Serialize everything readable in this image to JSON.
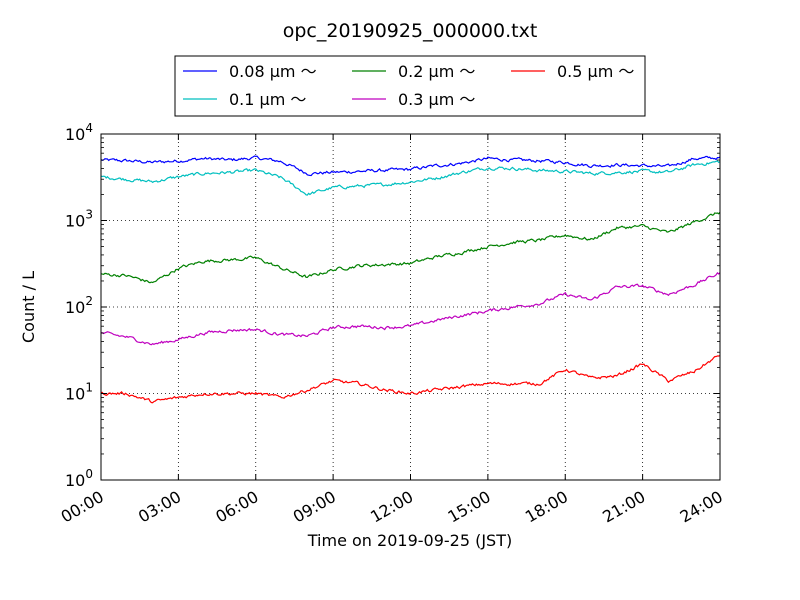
{
  "chart_data": {
    "type": "line",
    "title": "opc_20190925_000000.txt",
    "xlabel": "Time on 2019-09-25 (JST)",
    "ylabel": "Count / L",
    "yscale": "log",
    "ylim": [
      1,
      10000
    ],
    "xlim": [
      "00:00",
      "24:00"
    ],
    "grid": true,
    "legend_position": "top-center",
    "x_ticks": [
      "00:00",
      "03:00",
      "06:00",
      "09:00",
      "12:00",
      "15:00",
      "18:00",
      "21:00",
      "24:00"
    ],
    "y_ticks": [
      {
        "base": "10",
        "exp": "0",
        "value": 1
      },
      {
        "base": "10",
        "exp": "1",
        "value": 10
      },
      {
        "base": "10",
        "exp": "2",
        "value": 100
      },
      {
        "base": "10",
        "exp": "3",
        "value": 1000
      },
      {
        "base": "10",
        "exp": "4",
        "value": 10000
      }
    ],
    "x_hours": [
      0,
      1,
      2,
      3,
      4,
      5,
      6,
      7,
      8,
      9,
      10,
      11,
      12,
      13,
      14,
      15,
      16,
      17,
      18,
      19,
      20,
      21,
      22,
      23,
      24
    ],
    "series": [
      {
        "name": "0.08 μm ～",
        "color": "#0000ff",
        "values": [
          5000,
          4900,
          4700,
          4900,
          5200,
          5000,
          5300,
          4800,
          3500,
          3600,
          3700,
          3800,
          3900,
          4300,
          4600,
          5200,
          5000,
          4900,
          4700,
          4300,
          4400,
          4300,
          4200,
          5200,
          5300
        ]
      },
      {
        "name": "0.1 μm ～",
        "color": "#00bfbf",
        "values": [
          3200,
          3000,
          2800,
          3200,
          3500,
          3600,
          3800,
          3100,
          2000,
          2400,
          2500,
          2600,
          2800,
          3100,
          3600,
          4100,
          4000,
          3800,
          3700,
          3500,
          3600,
          3700,
          3600,
          4400,
          4800
        ]
      },
      {
        "name": "0.2 μm ～",
        "color": "#008000",
        "values": [
          240,
          230,
          190,
          280,
          340,
          350,
          370,
          280,
          220,
          270,
          300,
          310,
          320,
          380,
          430,
          500,
          560,
          590,
          680,
          600,
          820,
          860,
          720,
          960,
          1250
        ]
      },
      {
        "name": "0.3 μm ～",
        "color": "#bf00bf",
        "values": [
          50,
          45,
          37,
          42,
          50,
          54,
          55,
          48,
          46,
          58,
          60,
          58,
          60,
          70,
          80,
          90,
          100,
          110,
          140,
          120,
          170,
          175,
          140,
          180,
          250
        ]
      },
      {
        "name": "0.5 μm ～",
        "color": "#ff0000",
        "values": [
          10,
          10,
          8,
          9,
          10,
          10,
          10,
          9,
          11,
          14,
          13,
          11,
          10,
          11,
          12,
          13,
          13,
          13,
          19,
          15,
          16,
          22,
          14,
          18,
          28
        ]
      }
    ]
  }
}
